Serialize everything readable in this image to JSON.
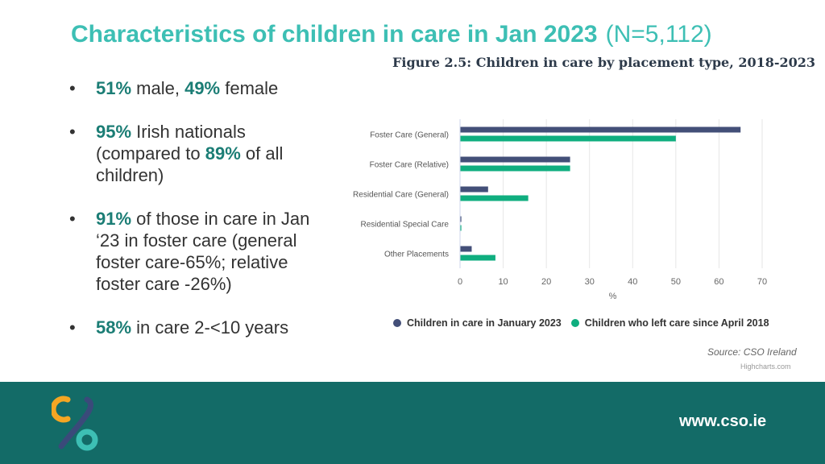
{
  "title": "Characteristics of children in care in Jan 2023",
  "title_n": "(N=5,112)",
  "bullets": [
    {
      "b1": "51%",
      "t1": " male, ",
      "b2": "49%",
      "t2": " female"
    },
    {
      "b1": "95%",
      "t1": " Irish nationals (compared to ",
      "b2": "89%",
      "t2": " of all children)"
    },
    {
      "b1": "91%",
      "t1": " of those in care in Jan ‘23 in foster care (general foster care-65%; relative foster care -26%)"
    },
    {
      "b1": "58%",
      "t1": " in care 2-<10 years"
    }
  ],
  "figure_title": "Figure 2.5: Children in care by placement type, 2018-2023",
  "chart_data": {
    "type": "bar",
    "orientation": "horizontal",
    "title": "Figure 2.5: Children in care by placement type, 2018-2023",
    "categories": [
      "Foster Care (General)",
      "Foster Care (Relative)",
      "Residential Care (General)",
      "Residential Special Care",
      "Other Placements"
    ],
    "series": [
      {
        "name": "Children in care in January 2023",
        "color": "#434f78",
        "values": [
          65,
          25.5,
          6.5,
          0.3,
          2.7
        ]
      },
      {
        "name": "Children who left care since April 2018",
        "color": "#0fae7f",
        "values": [
          50,
          25.5,
          15.8,
          0.3,
          8.2
        ]
      }
    ],
    "xlabel": "%",
    "xlim": [
      0,
      70
    ],
    "xticks": [
      0,
      10,
      20,
      30,
      40,
      50,
      60,
      70
    ],
    "legend": "bottom",
    "grid": true
  },
  "source": "Source: CSO Ireland",
  "credits": "Highcharts.com",
  "footer_url": "www.cso.ie",
  "colors": {
    "accent": "#3dbfb4",
    "footer": "#136b67",
    "bold_text": "#1b7d75"
  }
}
